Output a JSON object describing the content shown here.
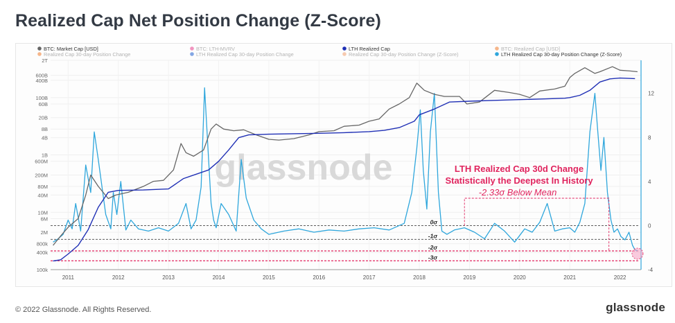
{
  "title": "Realized Cap Net Position Change (Z-Score)",
  "footer": {
    "copyright": "© 2022 Glassnode. All Rights Reserved.",
    "brand": "glassnode"
  },
  "watermark": "glassnode",
  "annotation": {
    "line1": "LTH Realized Cap 30d Change",
    "line2": "Statistically the Deepest In History",
    "line3": "-2.33σ Below Mean"
  },
  "colors": {
    "market_cap": "#666666",
    "lth_realized": "#1f2fb5",
    "zscore": "#2ea6dc",
    "annotation": "#e0245e",
    "sigma_line": "#444444",
    "sigma_pink": "#e0245e"
  },
  "chart_data": {
    "type": "line",
    "title": "Realized Cap Net Position Change (Z-Score)",
    "legend": [
      {
        "label": "BTC: Market Cap [USD]",
        "color": "#666666",
        "faded": false
      },
      {
        "label": "BTC: LTH-MVRV",
        "color": "#e83e8c",
        "faded": true
      },
      {
        "label": "LTH Realized Cap",
        "color": "#1f2fb5",
        "faded": false
      },
      {
        "label": "BTC: Realized Cap [USD]",
        "color": "#f07b2b",
        "faded": true
      },
      {
        "label": "Realized Cap 30-day Position Change",
        "color": "#f07b2b",
        "faded": true
      },
      {
        "label": "LTH Realized Cap 30-day Position Change",
        "color": "#1f5fd0",
        "faded": true
      },
      {
        "label": "Realized Cap 30-day Position Change (Z-Score)",
        "color": "#f0a070",
        "faded": true
      },
      {
        "label": "LTH Realized Cap 30-day Position Change (Z-Score)",
        "color": "#2ea6dc",
        "faded": false
      }
    ],
    "legend_placement": "top",
    "x_range": [
      2010.65,
      2022.42
    ],
    "x_ticks": [
      "2011",
      "2012",
      "2013",
      "2014",
      "2015",
      "2016",
      "2017",
      "2018",
      "2019",
      "2020",
      "2021",
      "2022"
    ],
    "y_left": {
      "scale": "log",
      "range": [
        100000,
        2000000000000
      ],
      "ticks": [
        {
          "v": 2000000000000.0,
          "l": "2T"
        },
        {
          "v": 600000000000.0,
          "l": "600B"
        },
        {
          "v": 400000000000.0,
          "l": "400B"
        },
        {
          "v": 100000000000.0,
          "l": "100B"
        },
        {
          "v": 60000000000.0,
          "l": "60B"
        },
        {
          "v": 20000000000.0,
          "l": "20B"
        },
        {
          "v": 8000000000.0,
          "l": "8B"
        },
        {
          "v": 4000000000.0,
          "l": "4B"
        },
        {
          "v": 1000000000.0,
          "l": "1B"
        },
        {
          "v": 600000000.0,
          "l": "600M"
        },
        {
          "v": 200000000.0,
          "l": "200M"
        },
        {
          "v": 80000000.0,
          "l": "80M"
        },
        {
          "v": 40000000.0,
          "l": "40M"
        },
        {
          "v": 10000000.0,
          "l": "10M"
        },
        {
          "v": 6000000.0,
          "l": "6M"
        },
        {
          "v": 2000000.0,
          "l": "2M"
        },
        {
          "v": 800000.0,
          "l": "800k"
        },
        {
          "v": 400000.0,
          "l": "400k"
        },
        {
          "v": 100000.0,
          "l": "100k"
        }
      ]
    },
    "y_right": {
      "scale": "linear",
      "range": [
        -4,
        15
      ],
      "ticks": [
        {
          "v": 12,
          "l": "12"
        },
        {
          "v": 8,
          "l": "8"
        },
        {
          "v": 4,
          "l": "4"
        },
        {
          "v": 0,
          "l": "0"
        },
        {
          "v": -4,
          "l": "-4"
        }
      ]
    },
    "sigma_lines": [
      {
        "label": "0σ",
        "value": 0
      },
      {
        "label": "-1σ",
        "value": -1.25
      },
      {
        "label": "-2σ",
        "value": -2.3
      },
      {
        "label": "-3σ",
        "value": -3.2
      }
    ],
    "grid": true,
    "series": [
      {
        "name": "BTC: Market Cap [USD]",
        "axis": "left",
        "color": "#666666",
        "x": [
          2010.7,
          2010.85,
          2011.0,
          2011.2,
          2011.35,
          2011.45,
          2011.6,
          2011.8,
          2011.95,
          2012.2,
          2012.5,
          2012.7,
          2012.9,
          2013.1,
          2013.25,
          2013.35,
          2013.5,
          2013.7,
          2013.85,
          2013.95,
          2014.1,
          2014.3,
          2014.5,
          2014.75,
          2015.0,
          2015.2,
          2015.5,
          2015.8,
          2016.0,
          2016.3,
          2016.5,
          2016.8,
          2017.0,
          2017.2,
          2017.4,
          2017.6,
          2017.8,
          2017.95,
          2018.1,
          2018.3,
          2018.5,
          2018.8,
          2018.95,
          2019.2,
          2019.5,
          2019.8,
          2020.0,
          2020.2,
          2020.4,
          2020.7,
          2020.9,
          2021.0,
          2021.1,
          2021.3,
          2021.5,
          2021.6,
          2021.85,
          2022.0,
          2022.2,
          2022.35
        ],
        "values": [
          700000,
          1500000,
          3000000,
          6000000,
          40000000,
          200000000,
          80000000,
          30000000,
          40000000,
          50000000,
          80000000,
          120000000,
          130000000,
          300000000,
          2500000000,
          1200000000,
          900000000,
          1500000000,
          8000000000,
          12000000000,
          8000000000,
          7000000000,
          7500000000,
          5000000000,
          3500000000,
          3300000000,
          3700000000,
          5000000000,
          6500000000,
          7000000000,
          10000000000,
          11000000000,
          15000000000,
          18000000000,
          40000000000,
          60000000000,
          100000000000,
          320000000000,
          180000000000,
          130000000000,
          110000000000,
          110000000000,
          60000000000,
          70000000000,
          180000000000,
          150000000000,
          130000000000,
          100000000000,
          170000000000,
          200000000000,
          250000000000,
          500000000000,
          700000000000,
          1100000000000,
          700000000000,
          800000000000,
          1200000000000,
          900000000000,
          850000000000,
          800000000000
        ]
      },
      {
        "name": "LTH Realized Cap",
        "axis": "left",
        "color": "#1f2fb5",
        "x": [
          2010.7,
          2010.85,
          2011.0,
          2011.2,
          2011.4,
          2011.6,
          2011.8,
          2012.0,
          2012.5,
          2013.0,
          2013.3,
          2013.8,
          2014.0,
          2014.2,
          2014.4,
          2014.6,
          2015.0,
          2015.5,
          2016.0,
          2016.5,
          2017.0,
          2017.3,
          2017.6,
          2017.9,
          2018.0,
          2018.3,
          2018.6,
          2019.0,
          2019.5,
          2020.0,
          2020.5,
          2020.9,
          2021.0,
          2021.2,
          2021.4,
          2021.6,
          2021.8,
          2022.0,
          2022.3
        ],
        "values": [
          200000,
          220000,
          350000,
          700000,
          2500000,
          15000000,
          50000000,
          58000000,
          60000000,
          65000000,
          150000000,
          300000000,
          600000000,
          1500000000,
          4000000000,
          5000000000,
          5300000000,
          5500000000,
          5700000000,
          6000000000,
          6500000000,
          7200000000,
          9000000000,
          15000000000,
          25000000000,
          40000000000,
          70000000000,
          75000000000,
          80000000000,
          85000000000,
          90000000000,
          95000000000,
          100000000000,
          120000000000,
          180000000000,
          350000000000,
          450000000000,
          480000000000,
          460000000000
        ]
      },
      {
        "name": "LTH Realized Cap 30-day Position Change (Z-Score)",
        "axis": "right",
        "color": "#2ea6dc",
        "x": [
          2010.7,
          2010.8,
          2010.9,
          2011.0,
          2011.08,
          2011.15,
          2011.25,
          2011.35,
          2011.45,
          2011.52,
          2011.6,
          2011.75,
          2011.85,
          2011.9,
          2011.97,
          2012.05,
          2012.15,
          2012.25,
          2012.4,
          2012.6,
          2012.8,
          2013.0,
          2013.2,
          2013.35,
          2013.45,
          2013.55,
          2013.65,
          2013.72,
          2013.8,
          2013.85,
          2013.9,
          2013.95,
          2014.05,
          2014.2,
          2014.35,
          2014.45,
          2014.55,
          2014.7,
          2014.85,
          2015.0,
          2015.3,
          2015.6,
          2015.9,
          2016.2,
          2016.5,
          2016.8,
          2017.1,
          2017.4,
          2017.7,
          2017.85,
          2017.95,
          2018.02,
          2018.08,
          2018.15,
          2018.22,
          2018.3,
          2018.38,
          2018.45,
          2018.55,
          2018.7,
          2018.9,
          2019.1,
          2019.3,
          2019.5,
          2019.7,
          2019.9,
          2020.1,
          2020.25,
          2020.4,
          2020.55,
          2020.7,
          2020.85,
          2021.0,
          2021.1,
          2021.2,
          2021.3,
          2021.4,
          2021.5,
          2021.55,
          2021.62,
          2021.68,
          2021.75,
          2021.82,
          2021.88,
          2021.95,
          2022.02,
          2022.1,
          2022.18,
          2022.25,
          2022.3,
          2022.35
        ],
        "values": [
          -1.5,
          -1.2,
          -0.8,
          0.5,
          -0.3,
          2.0,
          -0.5,
          5.5,
          3.0,
          8.5,
          6.0,
          1.0,
          -0.3,
          3.0,
          1.0,
          4.0,
          -0.4,
          0.5,
          -0.3,
          -0.5,
          -0.2,
          -0.5,
          0.2,
          2.0,
          -0.3,
          0.5,
          3.5,
          12.5,
          6.0,
          2.0,
          0.5,
          -0.2,
          2.0,
          1.0,
          -0.5,
          6.0,
          2.5,
          0.5,
          -0.3,
          -0.8,
          -0.5,
          -0.3,
          -0.6,
          -0.4,
          -0.5,
          -0.3,
          -0.2,
          -0.4,
          0.2,
          3.0,
          7.0,
          10.5,
          5.0,
          1.5,
          8.5,
          12.0,
          3.0,
          -0.5,
          -0.8,
          -0.4,
          -0.2,
          -0.6,
          -1.2,
          0.2,
          -0.5,
          -1.5,
          -0.3,
          -0.6,
          0.3,
          2.0,
          -0.5,
          -0.3,
          -0.2,
          -0.6,
          0.3,
          2.0,
          8.5,
          12.0,
          9.0,
          5.0,
          8.0,
          3.0,
          0.5,
          -0.6,
          -0.3,
          -1.0,
          -1.3,
          -0.6,
          -1.8,
          -2.2,
          -2.3
        ]
      }
    ]
  }
}
